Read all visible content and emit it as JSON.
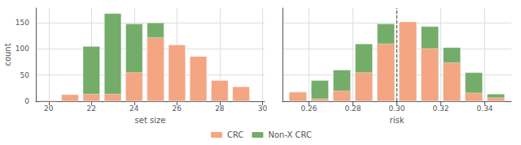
{
  "chart_data": [
    {
      "type": "bar",
      "xlabel": "set size",
      "ylabel": "count",
      "x": [
        20,
        21,
        22,
        23,
        24,
        25,
        26,
        27,
        28,
        29
      ],
      "series": [
        {
          "name": "CRC",
          "color": "#F4A582",
          "values": [
            2,
            13,
            14,
            14,
            55,
            122,
            108,
            86,
            40,
            28
          ]
        },
        {
          "name": "Non-X CRC",
          "color": "#74AC6A",
          "values": [
            1,
            11,
            105,
            168,
            148,
            150,
            87,
            37,
            18,
            12
          ]
        }
      ],
      "xlim": [
        19.4,
        30.1
      ],
      "xticks": [
        20,
        22,
        24,
        26,
        28,
        30
      ],
      "ylim": [
        0,
        178
      ],
      "yticks": [
        0,
        50,
        100,
        150
      ],
      "grid": true,
      "legend": "bottom"
    },
    {
      "type": "bar",
      "xlabel": "risk",
      "x": [
        0.255,
        0.265,
        0.275,
        0.285,
        0.295,
        0.305,
        0.315,
        0.325,
        0.335,
        0.345
      ],
      "series": [
        {
          "name": "CRC",
          "color": "#F4A582",
          "values": [
            17,
            5,
            20,
            55,
            110,
            152,
            101,
            74,
            16,
            7
          ]
        },
        {
          "name": "Non-X CRC",
          "color": "#74AC6A",
          "values": [
            18,
            40,
            60,
            110,
            148,
            150,
            143,
            103,
            55,
            14
          ]
        }
      ],
      "vline": 0.3,
      "xlim": [
        0.248,
        0.352
      ],
      "xticks": [
        0.26,
        0.28,
        {
          "value": 0.3,
          "label": "0.30"
        },
        0.32,
        0.34
      ],
      "ylim": [
        0,
        178
      ],
      "yticks": [
        0,
        50,
        100,
        150
      ],
      "grid": true,
      "tick_labels": "x"
    }
  ]
}
